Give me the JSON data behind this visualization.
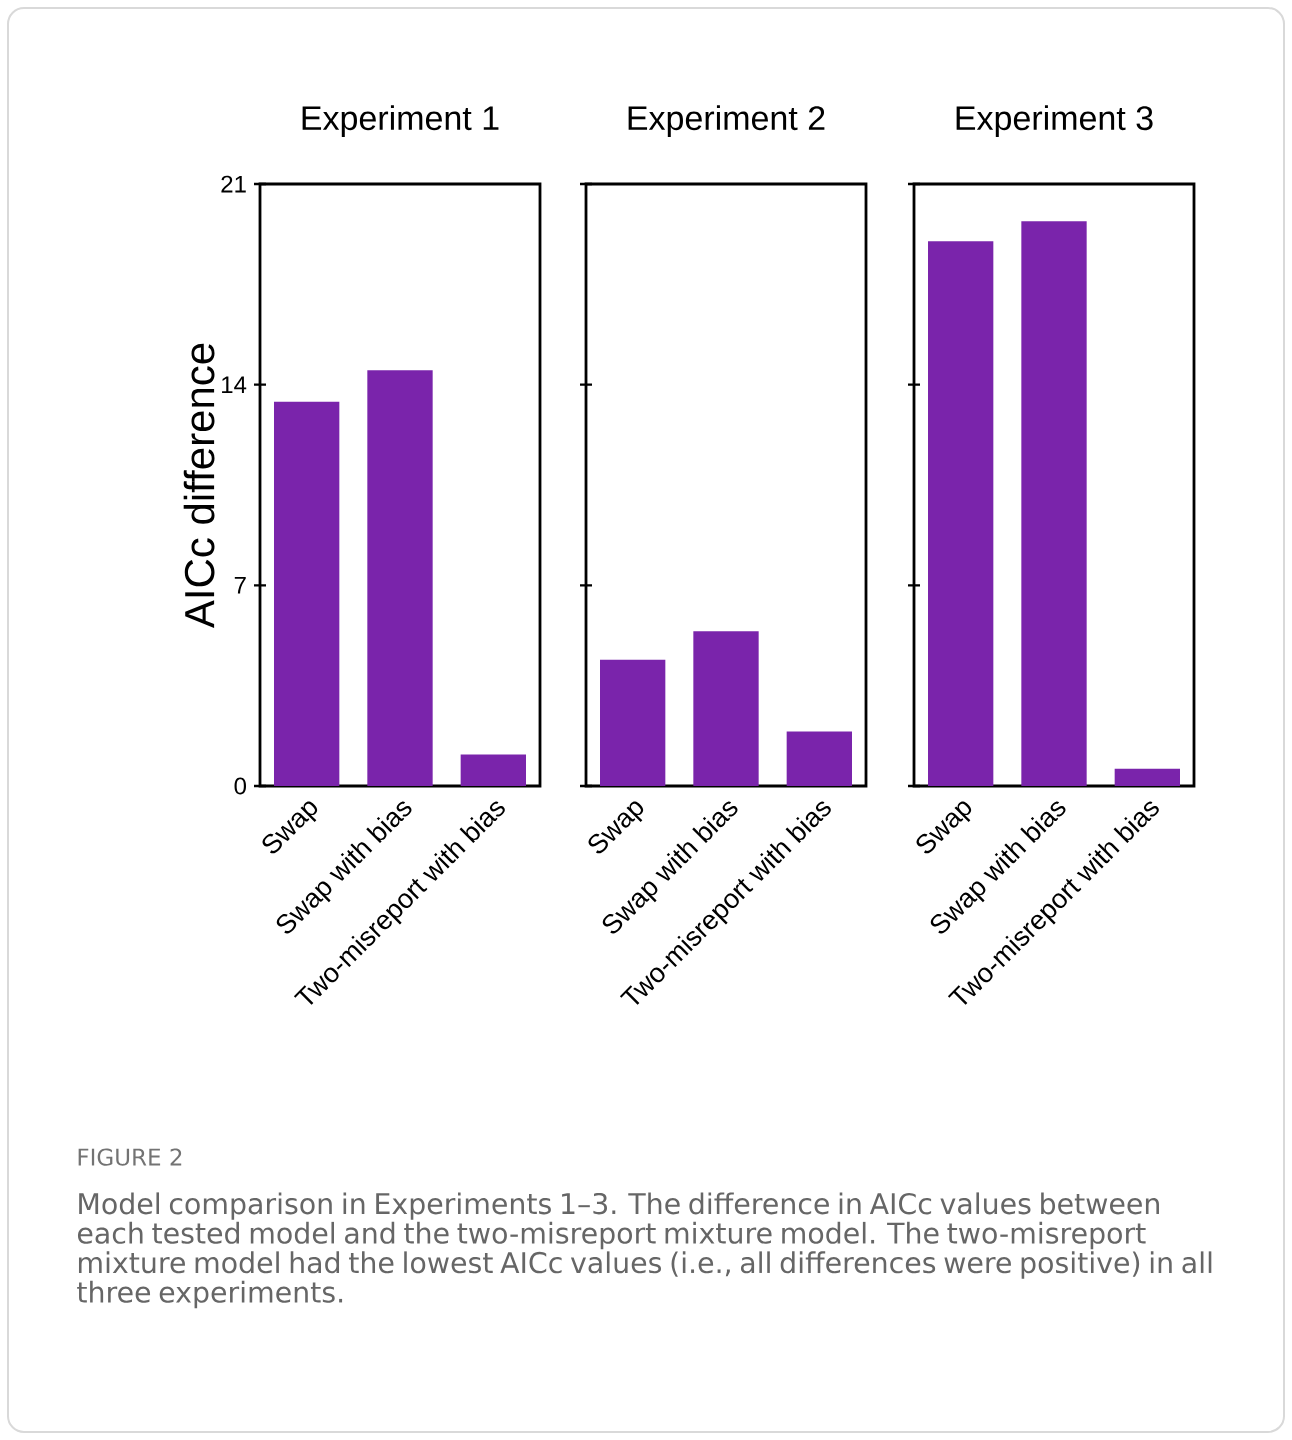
{
  "chart_data": [
    {
      "type": "bar",
      "title": "Experiment 1",
      "ylabel": "AICc  difference",
      "categories": [
        "Swap",
        "Swap with bias",
        "Two-misreport with bias"
      ],
      "values": [
        13.4,
        14.5,
        1.1
      ],
      "color": "#7a24ab",
      "ylim": [
        0,
        21
      ],
      "yticks": [
        0,
        7,
        14,
        21
      ],
      "annotations": [
        "FIGURE 2",
        "Model comparison in Experiments 1–3. The difference in AICc values between each tested model and the two-misreport mixture model. The two-misreport mixture model had the lowest AICc values (i.e., all differences were positive) in all three experiments."
      ]
    },
    {
      "type": "bar",
      "title": "Experiment 2",
      "categories": [
        "Swap",
        "Swap with bias",
        "Two-misreport with bias"
      ],
      "values": [
        4.4,
        5.4,
        1.9
      ],
      "color": "#7a24ab",
      "ylim": [
        0,
        21
      ],
      "yticks": [
        0,
        7,
        14,
        21
      ],
      "tick_labels": "x"
    },
    {
      "type": "bar",
      "title": "Experiment 3",
      "categories": [
        "Swap",
        "Swap with bias",
        "Two-misreport with bias"
      ],
      "values": [
        19.0,
        19.7,
        0.6
      ],
      "color": "#7a24ab",
      "ylim": [
        0,
        21
      ],
      "yticks": [
        0,
        7,
        14,
        21
      ],
      "tick_labels": "x"
    }
  ]
}
